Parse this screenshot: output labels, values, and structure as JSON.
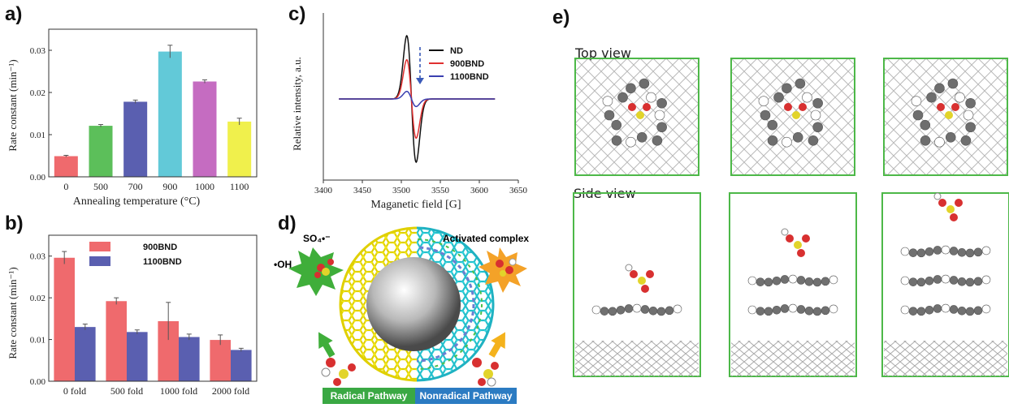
{
  "panels": {
    "a": {
      "label": "a)"
    },
    "b": {
      "label": "b)"
    },
    "c": {
      "label": "c)"
    },
    "d": {
      "label": "d)"
    },
    "e": {
      "label": "e)"
    }
  },
  "chart_data": [
    {
      "type": "bar",
      "panel": "a",
      "categories": [
        "0",
        "500",
        "700",
        "900",
        "1000",
        "1100"
      ],
      "values": [
        0.0049,
        0.0121,
        0.0178,
        0.0297,
        0.0226,
        0.0131
      ],
      "errors": [
        0.0002,
        0.0003,
        0.0004,
        0.0015,
        0.0004,
        0.0008
      ],
      "colors": [
        "#ef6a6d",
        "#5cbf5a",
        "#5a5fb0",
        "#62c9d8",
        "#c56cc1",
        "#f0f04c"
      ],
      "xlabel": "Annealing temperature (°C)",
      "ylabel": "Rate constant (min⁻¹)",
      "ylim": [
        0,
        0.035
      ],
      "yticks": [
        "0.00",
        "0.01",
        "0.02",
        "0.03"
      ]
    },
    {
      "type": "bar",
      "panel": "b",
      "categories": [
        "0 fold",
        "500 fold",
        "1000 fold",
        "2000 fold"
      ],
      "series": [
        {
          "name": "900BND",
          "values": [
            0.0296,
            0.0192,
            0.0144,
            0.0099
          ],
          "errors": [
            0.0015,
            0.0008,
            0.0045,
            0.0012
          ],
          "color": "#ef6a6d"
        },
        {
          "name": "1100BND",
          "values": [
            0.013,
            0.0118,
            0.0106,
            0.0075
          ],
          "errors": [
            0.0007,
            0.0005,
            0.0007,
            0.0004
          ],
          "color": "#5a5fb0"
        }
      ],
      "ylabel": "Rate constant (min⁻¹)",
      "ylim": [
        0,
        0.035
      ],
      "yticks": [
        "0.00",
        "0.01",
        "0.02",
        "0.03"
      ],
      "legend": "top-center"
    },
    {
      "type": "line",
      "panel": "c",
      "xlabel": "Maganetic field [G]",
      "ylabel": "Relative intensity, a.u.",
      "xlim": [
        3400,
        3650
      ],
      "xticks": [
        "3400",
        "3450",
        "3500",
        "3550",
        "3600",
        "3650"
      ],
      "center": 3513,
      "series": [
        {
          "name": "ND",
          "amplitude": 1.0,
          "color": "#111111"
        },
        {
          "name": "900BND",
          "amplitude": 0.62,
          "color": "#e03030"
        },
        {
          "name": "1100BND",
          "amplitude": 0.12,
          "color": "#3a3fb0"
        }
      ],
      "legend": "top-right"
    }
  ],
  "panel_d": {
    "so4": "SO₄•⁻",
    "oh": "•OH",
    "activated": "Activated complex",
    "radical": "Radical Pathway",
    "nonradical": "Nonradical Pathway",
    "radical_color": "#3aa843",
    "nonradical_color": "#2b7bc2"
  },
  "panel_e": {
    "top_view": "Top view",
    "side_view": "Side view"
  }
}
